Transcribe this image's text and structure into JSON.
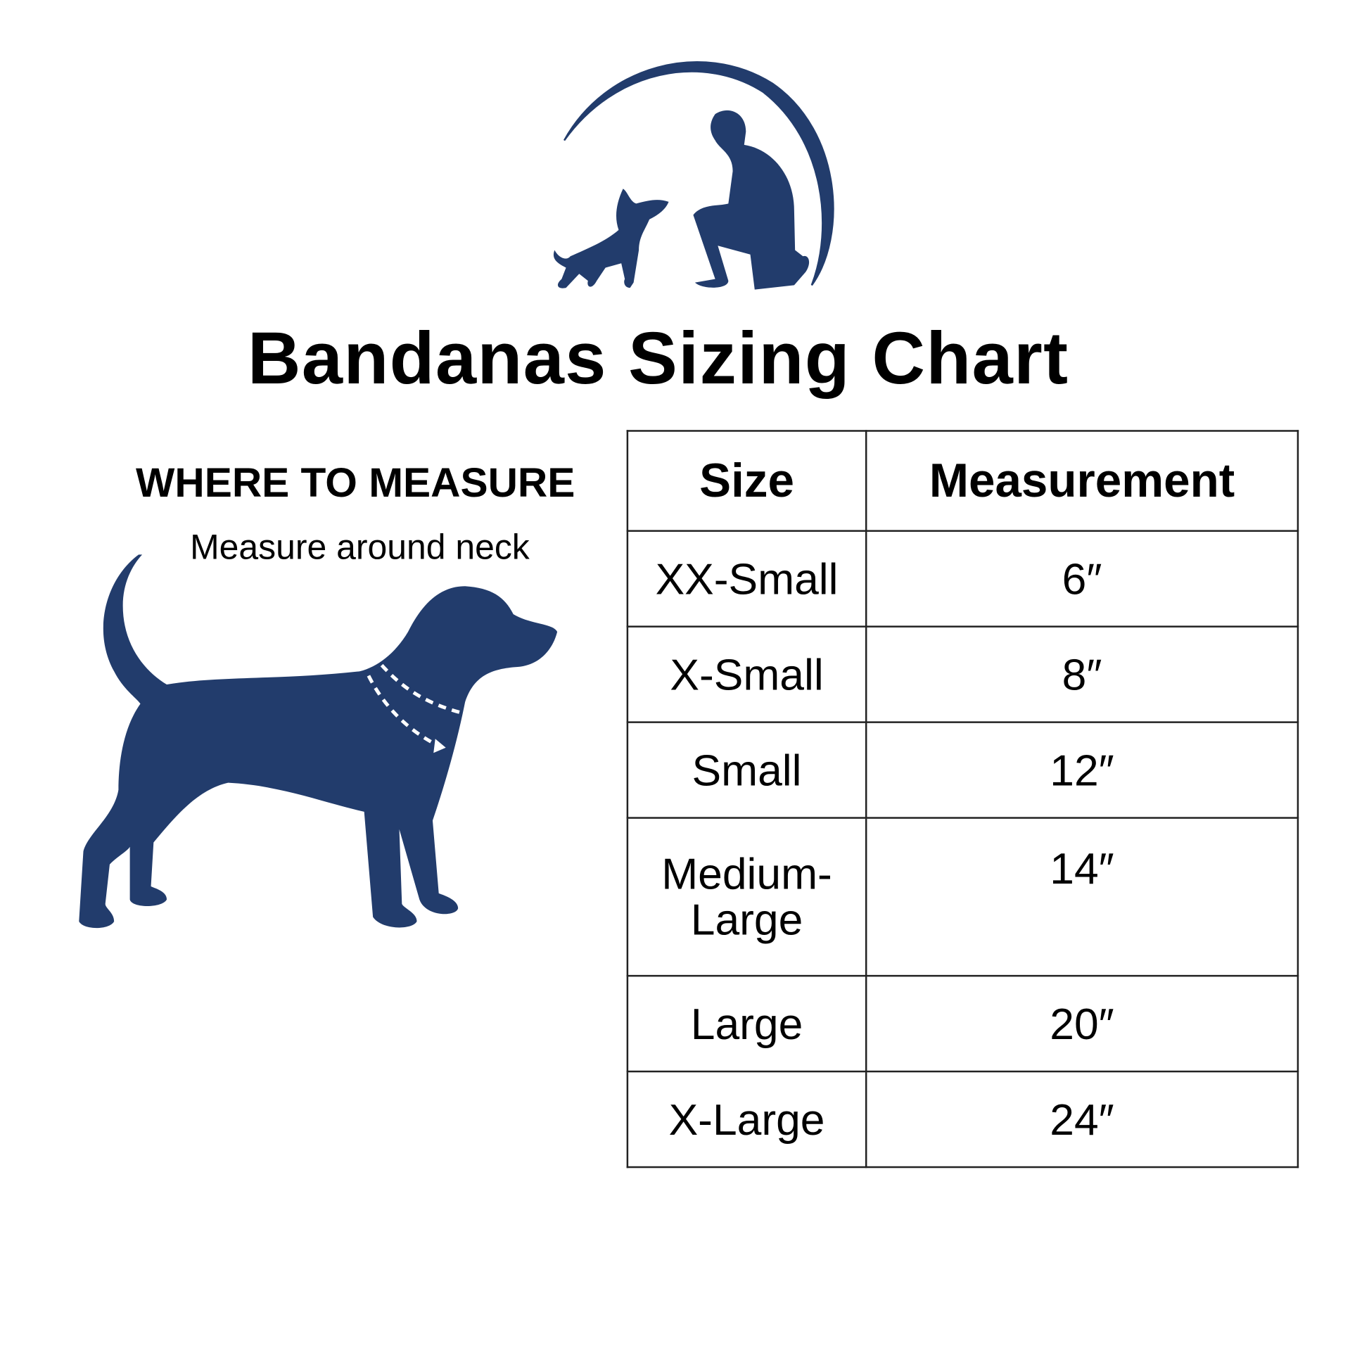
{
  "title": "Bandanas Sizing Chart",
  "logo": {
    "icon": "person-kneeling-with-dog-logo",
    "color": "#223c6c"
  },
  "guide": {
    "heading": "WHERE TO MEASURE",
    "instruction": "Measure around neck",
    "icon": "dog-silhouette-neck-measure",
    "color": "#223c6c"
  },
  "table": {
    "headers": [
      "Size",
      "Measurement"
    ],
    "rows": [
      {
        "size": "XX-Small",
        "measurement": "6″"
      },
      {
        "size": "X-Small",
        "measurement": "8″"
      },
      {
        "size": "Small",
        "measurement": "12″"
      },
      {
        "size": "Medium-\nLarge",
        "measurement": "14″"
      },
      {
        "size": "Large",
        "measurement": "20″"
      },
      {
        "size": "X-Large",
        "measurement": "24″"
      }
    ]
  }
}
